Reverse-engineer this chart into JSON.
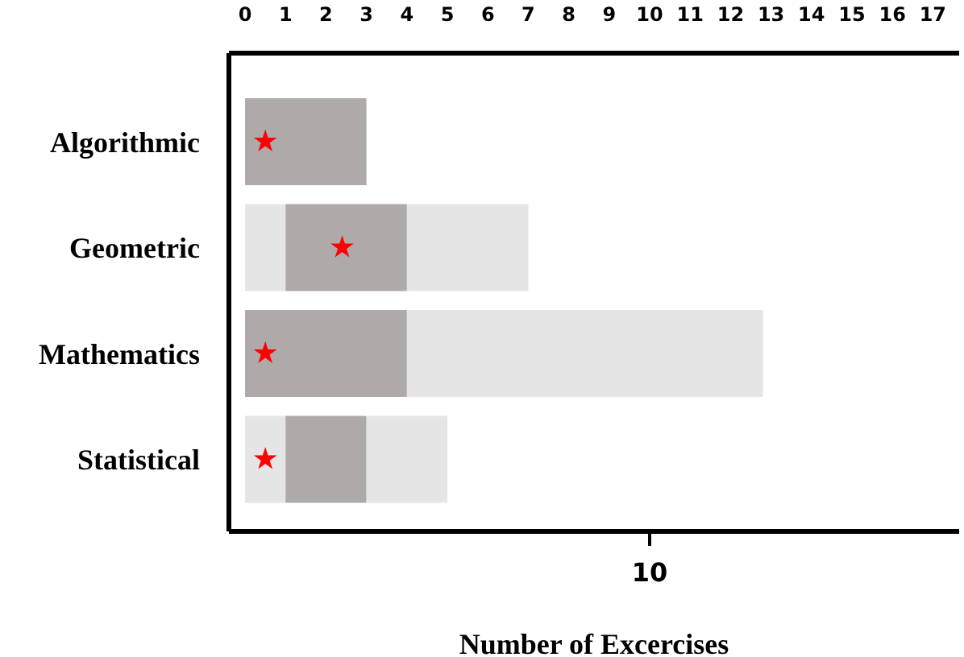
{
  "chart_data": {
    "type": "bar",
    "orientation": "horizontal",
    "stacked": true,
    "categories": [
      "Algorithmic",
      "Geometric",
      "Mathematics",
      "Statistical"
    ],
    "series": [
      {
        "color": "#e5e5e5",
        "values": [
          0,
          1,
          0,
          1
        ]
      },
      {
        "color": "#aeaaa9",
        "values": [
          3,
          3,
          4,
          2
        ]
      },
      {
        "color": "#e5e5e5",
        "values": [
          0,
          3,
          8.8,
          2
        ]
      },
      {
        "type": "scatter",
        "color": "#ff0000",
        "values": [
          0.5,
          2.4,
          0.5,
          0.5
        ]
      }
    ],
    "marker": "star",
    "xlabel": "Number of Excercises",
    "xlim": [
      -0.4,
      17.65
    ],
    "xticks": [
      0,
      1,
      2,
      3,
      4,
      5,
      6,
      7,
      8,
      9,
      10,
      11,
      12,
      13,
      14,
      15,
      16,
      17
    ],
    "annotations": [
      "10"
    ],
    "grid": false,
    "legend": false
  }
}
